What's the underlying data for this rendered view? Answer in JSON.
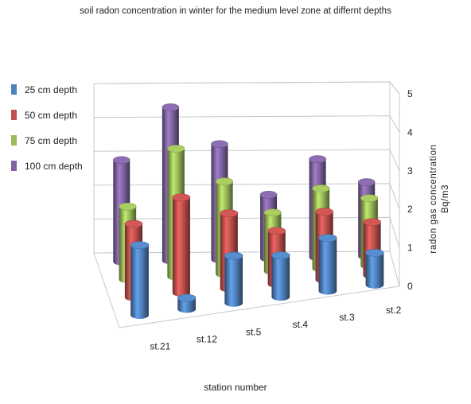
{
  "chart_data": {
    "type": "bar",
    "title": "soil radon concentration in winter for the medium level zone at differnt depths",
    "xlabel": "station number",
    "ylabel": "radon gas concentration Bq/m3",
    "ylim": [
      0,
      5
    ],
    "yticks": [
      "0",
      "1",
      "2",
      "3",
      "4",
      "5"
    ],
    "categories": [
      "st.21",
      "st.12",
      "st.5",
      "st.4",
      "st.3",
      "st.2"
    ],
    "series": [
      {
        "name": "25 cm depth",
        "color": "#4f81bd",
        "values": [
          1.85,
          0.3,
          1.25,
          1.1,
          1.4,
          0.85
        ]
      },
      {
        "name": "50 cm depth",
        "color": "#c0504d",
        "values": [
          2.0,
          2.6,
          2.05,
          1.45,
          1.85,
          1.45
        ]
      },
      {
        "name": "75 cm depth",
        "color": "#9bbb59",
        "values": [
          2.05,
          3.6,
          2.6,
          1.65,
          2.25,
          1.9
        ]
      },
      {
        "name": "100 cm depth",
        "color": "#8064a2",
        "values": [
          2.95,
          4.45,
          3.35,
          1.85,
          2.85,
          2.15
        ]
      }
    ],
    "legend": "left",
    "grid": true
  }
}
